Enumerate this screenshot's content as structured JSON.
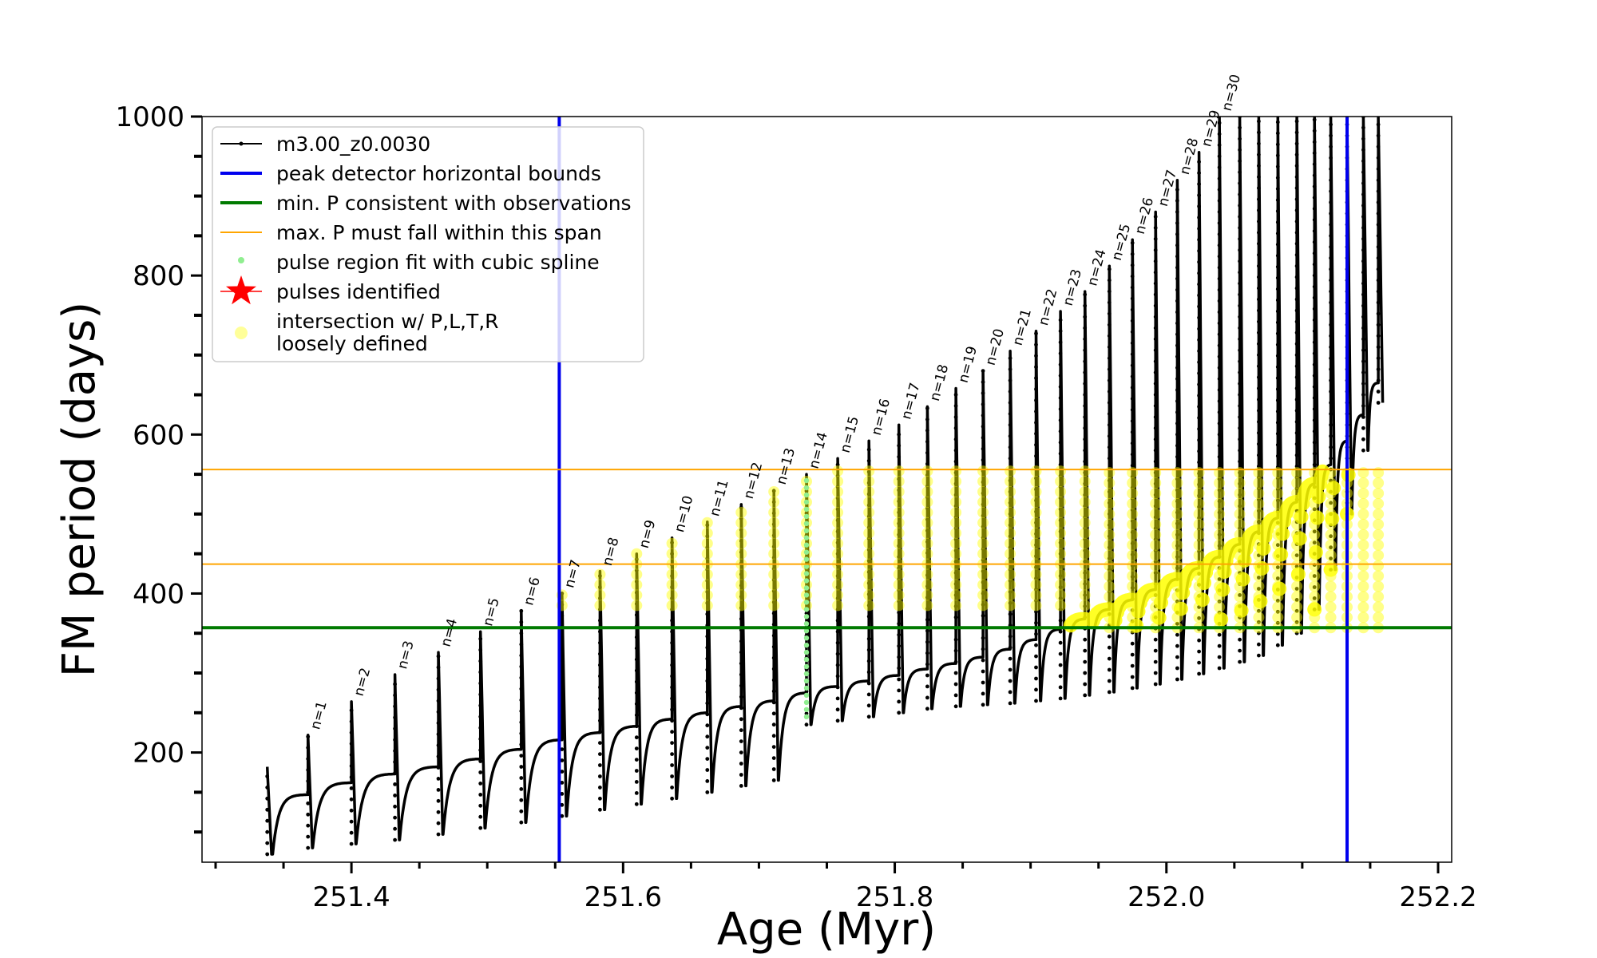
{
  "chart_data": {
    "type": "line",
    "title": "",
    "xlabel": "Age (Myr)",
    "ylabel": "FM period (days)",
    "xlim": [
      251.29,
      252.21
    ],
    "ylim": [
      62,
      1000
    ],
    "xticks": [
      251.4,
      251.6,
      251.8,
      252.0,
      252.2
    ],
    "xtick_labels": [
      "251.4",
      "251.6",
      "251.8",
      "252.0",
      "252.2"
    ],
    "yticks": [
      200,
      400,
      600,
      800,
      1000
    ],
    "ytick_labels": [
      "200",
      "400",
      "600",
      "800",
      "1000"
    ],
    "grid": false,
    "legend_position": "top-left",
    "legend": [
      {
        "label": "m3.00_z0.0030",
        "kind": "line-marker",
        "color": "#000000"
      },
      {
        "label": "peak detector horizontal bounds",
        "kind": "line",
        "color": "#0000ee"
      },
      {
        "label": "min. P consistent with observations",
        "kind": "line",
        "color": "#007a00"
      },
      {
        "label": "max. P must fall within this span",
        "kind": "thin-line",
        "color": "#ffa500"
      },
      {
        "label": "pulse region fit with cubic spline",
        "kind": "dot",
        "color": "#90ee90"
      },
      {
        "label": "pulses identified",
        "kind": "star",
        "color": "#ff0000"
      },
      {
        "label": "intersection w/ P,L,T,R",
        "label2": "loosely defined",
        "kind": "circle",
        "color": "#ffff99"
      }
    ],
    "colors": {
      "track": "#000000",
      "bounds": "#0000ee",
      "min_period": "#007a00",
      "max_span": "#ffa500",
      "spline": "#90ee90",
      "star": "#ff0000",
      "intersection": "#ffff00"
    },
    "vertical_bounds": [
      251.553,
      252.133
    ],
    "min_period": 357,
    "max_period_span": [
      437,
      556
    ],
    "pulses": [
      {
        "label": "n=1",
        "age": 251.368,
        "peak": 222,
        "min": 80,
        "base": 147
      },
      {
        "label": "n=2",
        "age": 251.4,
        "peak": 264,
        "min": 85,
        "base": 162
      },
      {
        "label": "n=3",
        "age": 251.432,
        "peak": 298,
        "min": 90,
        "base": 173
      },
      {
        "label": "n=4",
        "age": 251.464,
        "peak": 326,
        "min": 97,
        "base": 182
      },
      {
        "label": "n=5",
        "age": 251.495,
        "peak": 352,
        "min": 105,
        "base": 192
      },
      {
        "label": "n=6",
        "age": 251.525,
        "peak": 378,
        "min": 112,
        "base": 204
      },
      {
        "label": "n=7",
        "age": 251.555,
        "peak": 400,
        "min": 120,
        "base": 216
      },
      {
        "label": "n=8",
        "age": 251.583,
        "peak": 428,
        "min": 128,
        "base": 225
      },
      {
        "label": "n=9",
        "age": 251.61,
        "peak": 450,
        "min": 135,
        "base": 233
      },
      {
        "label": "n=10",
        "age": 251.636,
        "peak": 470,
        "min": 142,
        "base": 242
      },
      {
        "label": "n=11",
        "age": 251.662,
        "peak": 490,
        "min": 150,
        "base": 250
      },
      {
        "label": "n=12",
        "age": 251.687,
        "peak": 512,
        "min": 158,
        "base": 258
      },
      {
        "label": "n=13",
        "age": 251.711,
        "peak": 530,
        "min": 165,
        "base": 265
      },
      {
        "label": "n=14",
        "age": 251.735,
        "peak": 550,
        "min": 235,
        "base": 275
      },
      {
        "label": "n=15",
        "age": 251.758,
        "peak": 570,
        "min": 240,
        "base": 283
      },
      {
        "label": "n=16",
        "age": 251.781,
        "peak": 592,
        "min": 245,
        "base": 290
      },
      {
        "label": "n=17",
        "age": 251.803,
        "peak": 612,
        "min": 250,
        "base": 297
      },
      {
        "label": "n=18",
        "age": 251.824,
        "peak": 635,
        "min": 255,
        "base": 305
      },
      {
        "label": "n=19",
        "age": 251.845,
        "peak": 658,
        "min": 258,
        "base": 312
      },
      {
        "label": "n=20",
        "age": 251.865,
        "peak": 680,
        "min": 260,
        "base": 320
      },
      {
        "label": "n=21",
        "age": 251.885,
        "peak": 705,
        "min": 262,
        "base": 330
      },
      {
        "label": "n=22",
        "age": 251.904,
        "peak": 730,
        "min": 265,
        "base": 342
      },
      {
        "label": "n=23",
        "age": 251.922,
        "peak": 755,
        "min": 268,
        "base": 355
      },
      {
        "label": "n=24",
        "age": 251.94,
        "peak": 780,
        "min": 272,
        "base": 368
      },
      {
        "label": "n=25",
        "age": 251.958,
        "peak": 812,
        "min": 276,
        "base": 380
      },
      {
        "label": "n=26",
        "age": 251.975,
        "peak": 845,
        "min": 281,
        "base": 392
      },
      {
        "label": "n=27",
        "age": 251.992,
        "peak": 880,
        "min": 286,
        "base": 405
      },
      {
        "label": "n=28",
        "age": 252.008,
        "peak": 920,
        "min": 292,
        "base": 418
      },
      {
        "label": "n=29",
        "age": 252.024,
        "peak": 955,
        "min": 299,
        "base": 432
      },
      {
        "label": "n=30",
        "age": 252.039,
        "peak": 1000,
        "min": 306,
        "base": 446
      },
      {
        "label": "",
        "age": 252.054,
        "peak": 1000,
        "min": 314,
        "base": 462
      },
      {
        "label": "",
        "age": 252.068,
        "peak": 1000,
        "min": 322,
        "base": 478
      },
      {
        "label": "",
        "age": 252.082,
        "peak": 1000,
        "min": 335,
        "base": 495
      },
      {
        "label": "",
        "age": 252.096,
        "peak": 1000,
        "min": 350,
        "base": 515
      },
      {
        "label": "",
        "age": 252.109,
        "peak": 1000,
        "min": 380,
        "base": 538
      },
      {
        "label": "",
        "age": 252.121,
        "peak": 1000,
        "min": 430,
        "base": 562
      },
      {
        "label": "",
        "age": 252.133,
        "peak": 1000,
        "min": 500,
        "base": 592
      },
      {
        "label": "",
        "age": 252.145,
        "peak": 1000,
        "min": 580,
        "base": 625
      },
      {
        "label": "",
        "age": 252.156,
        "peak": 1000,
        "min": 640,
        "base": 665
      }
    ],
    "track_start": {
      "age": 251.338,
      "peak": 182,
      "min": 72
    }
  }
}
